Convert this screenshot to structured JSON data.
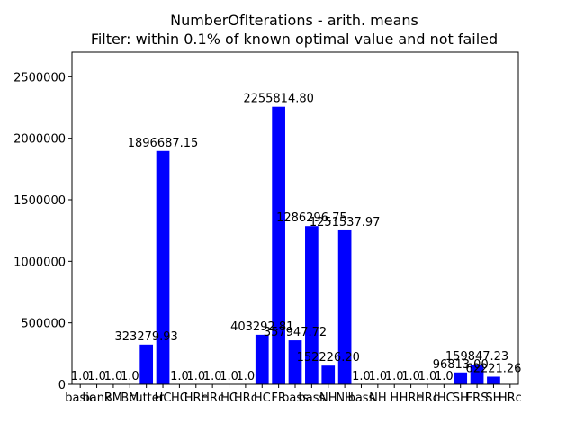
{
  "chart_data": {
    "type": "bar",
    "title": "NumberOfIterations - arith. means",
    "subtitle": "Filter: within 0.1% of known optimal value and not failed",
    "xlabel": "",
    "ylabel": "",
    "ylim": [
      0,
      2700000
    ],
    "yticks": [
      0,
      500000,
      1000000,
      1500000,
      2000000,
      2500000
    ],
    "grid": false,
    "bar_color": "#0000ff",
    "categories": [
      "basic",
      "bank",
      "BM",
      "BM",
      "cutter",
      "HC",
      "HC",
      "HRc",
      "HRc",
      "HC",
      "HRc",
      "HC",
      "FR",
      "bass",
      "bass",
      "NH",
      "NH",
      "bass",
      "NH",
      "H",
      "HRc",
      "HRc",
      "IHC",
      "SH",
      "FRS",
      "SH",
      "HRc"
    ],
    "values": [
      1.0,
      1.0,
      1.0,
      1.0,
      323279.93,
      1896687.15,
      1.0,
      1.0,
      1.0,
      1.0,
      1.0,
      403292.81,
      2255814.8,
      357947.72,
      1286296.75,
      152226.2,
      1251537.97,
      1.0,
      1.0,
      1.0,
      1.0,
      1.0,
      1.0,
      96813.0,
      159847.23,
      62221.26,
      0
    ],
    "labels": [
      "1.0",
      "1.0",
      "1.0",
      "1.0",
      "323279.93",
      "1896687.15",
      "1.0",
      "1.0",
      "1.0",
      "1.0",
      "1.0",
      "403292.81",
      "2255814.80",
      "357947.72",
      "1286296.75",
      "152226.20",
      "1251537.97",
      "1.0",
      "1.0",
      "1.0",
      "1.0",
      "1.0",
      "1.0",
      "96813.00",
      "159847.23",
      "62221.26",
      ""
    ]
  }
}
